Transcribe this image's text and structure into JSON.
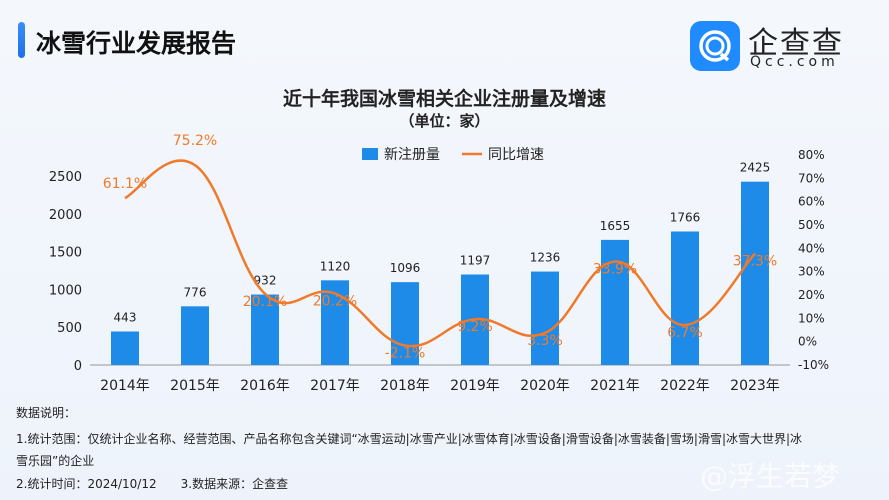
{
  "header": {
    "title": "冰雪行业发展报告"
  },
  "logo": {
    "name_cn": "企查查",
    "name_en": "Qcc.com"
  },
  "chart_data": {
    "type": "bar+line",
    "title": "近十年我国冰雪相关企业注册量及增速",
    "subtitle": "（单位：家）",
    "categories": [
      "2014年",
      "2015年",
      "2016年",
      "2017年",
      "2018年",
      "2019年",
      "2020年",
      "2021年",
      "2022年",
      "2023年"
    ],
    "series": [
      {
        "name": "新注册量",
        "type": "bar",
        "axis": "left",
        "color": "#1f8be8",
        "values": [
          443,
          776,
          932,
          1120,
          1096,
          1197,
          1236,
          1655,
          1766,
          2425
        ],
        "labels": [
          "443",
          "776",
          "932",
          "1120",
          "1096",
          "1197",
          "1236",
          "1655",
          "1766",
          "2425"
        ]
      },
      {
        "name": "同比增速",
        "type": "line",
        "axis": "right",
        "color": "#f07a2a",
        "values": [
          61.1,
          75.2,
          20.1,
          20.2,
          -2.1,
          9.2,
          3.3,
          33.9,
          6.7,
          37.3
        ],
        "labels": [
          "61.1%",
          "75.2%",
          "20.1%",
          "20.2%",
          "-2.1%",
          "9.2%",
          "3.3%",
          "33.9%",
          "6.7%",
          "37.3%"
        ]
      }
    ],
    "left_axis": {
      "ylim": [
        0,
        2500
      ],
      "ticks": [
        "0",
        "500",
        "1000",
        "1500",
        "2000",
        "2500"
      ]
    },
    "right_axis": {
      "ylim": [
        -10,
        80
      ],
      "ticks": [
        "-10%",
        "0%",
        "10%",
        "20%",
        "30%",
        "40%",
        "50%",
        "60%",
        "70%",
        "80%"
      ]
    },
    "legend": "top-center",
    "grid": false
  },
  "notes": {
    "heading": "数据说明：",
    "line1": "1.统计范围：仅统计企业名称、经营范围、产品名称包含关键词“冰雪运动|冰雪产业|冰雪体育|冰雪设备|滑雪设备|冰雪装备|雪场|滑雪|冰雪大世界|冰",
    "line2": "雪乐园”的企业",
    "line3": "2.统计时间：2024/10/12　　3.数据来源：企查查"
  },
  "watermark": "@浮生若梦"
}
